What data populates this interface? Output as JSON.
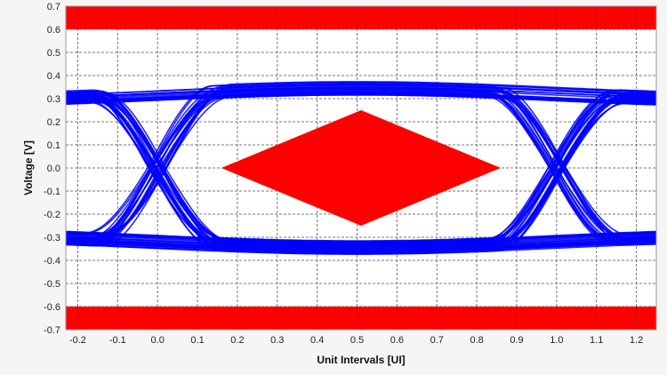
{
  "chart_data": {
    "type": "line",
    "title": "",
    "xlabel": "Unit Intervals [UI]",
    "ylabel": "Voltage [V]",
    "xlim": [
      -0.23,
      1.25
    ],
    "ylim": [
      -0.7,
      0.7
    ],
    "x_ticks": [
      "-0.2",
      "-0.1",
      "0.0",
      "0.1",
      "0.2",
      "0.3",
      "0.4",
      "0.5",
      "0.6",
      "0.7",
      "0.8",
      "0.9",
      "1.0",
      "1.1",
      "1.2"
    ],
    "y_ticks": [
      "0.7",
      "0.6",
      "0.5",
      "0.4",
      "0.3",
      "0.2",
      "0.1",
      "0.0",
      "-0.1",
      "-0.2",
      "-0.3",
      "-0.4",
      "-0.5",
      "-0.6",
      "-0.7"
    ],
    "grid": true,
    "eye": {
      "crossings_ui": [
        0.0,
        1.0
      ],
      "high_level_v": 0.32,
      "low_level_v": -0.32,
      "trace_color": "#0000ff"
    },
    "mask": {
      "color": "#ff0000",
      "diamond": [
        [
          0.16,
          0.0
        ],
        [
          0.51,
          0.25
        ],
        [
          0.86,
          0.0
        ],
        [
          0.51,
          -0.25
        ]
      ],
      "upper_band": [
        0.6,
        0.7
      ],
      "lower_band": [
        -0.7,
        -0.6
      ]
    }
  }
}
